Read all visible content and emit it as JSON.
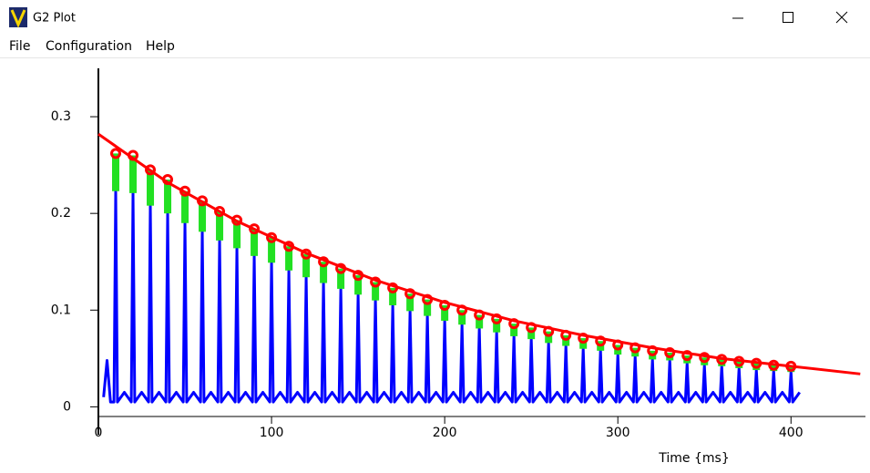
{
  "window": {
    "title": "G2 Plot",
    "menu": [
      "File",
      "Configuration",
      "Help"
    ]
  },
  "chart_data": {
    "type": "line",
    "xlabel": "Time {ms}",
    "xlim": [
      0,
      443
    ],
    "ylim": [
      -0.01,
      0.35
    ],
    "xticks": [
      0,
      100,
      200,
      300,
      400
    ],
    "yticks": [
      0,
      0.1,
      0.2,
      0.3
    ],
    "series": [
      {
        "style": "line",
        "color": "#0000ff",
        "x": [
          3,
          5,
          7,
          9,
          10,
          11,
          15,
          19,
          20,
          21,
          25,
          29,
          30,
          31,
          35,
          39,
          40,
          41,
          45,
          49,
          50,
          51,
          55,
          59,
          60,
          61,
          65,
          69,
          70,
          71,
          75,
          79,
          80,
          81,
          85,
          89,
          90,
          91,
          95,
          99,
          100,
          101,
          105,
          109,
          110,
          111,
          115,
          119,
          120,
          121,
          125,
          129,
          130,
          131,
          135,
          139,
          140,
          141,
          145,
          149,
          150,
          151,
          155,
          159,
          160,
          161,
          165,
          169,
          170,
          171,
          175,
          179,
          180,
          181,
          185,
          189,
          190,
          191,
          195,
          199,
          200,
          201,
          205,
          209,
          210,
          211,
          215,
          219,
          220,
          221,
          225,
          229,
          230,
          231,
          235,
          239,
          240,
          241,
          245,
          249,
          250,
          251,
          255,
          259,
          260,
          261,
          265,
          269,
          270,
          271,
          275,
          279,
          280,
          281,
          285,
          289,
          290,
          291,
          295,
          299,
          300,
          301,
          305,
          309,
          310,
          311,
          315,
          319,
          320,
          321,
          325,
          329,
          330,
          331,
          335,
          339,
          340,
          341,
          345,
          349,
          350,
          351,
          355,
          359,
          360,
          361,
          365,
          369,
          370,
          371,
          375,
          379,
          380,
          381,
          385,
          389,
          390,
          391,
          395,
          399,
          400,
          401,
          405
        ],
        "values": [
          0.01,
          0.048,
          0.005,
          0.005,
          0.223,
          0.005,
          0.015,
          0.005,
          0.221,
          0.005,
          0.015,
          0.005,
          0.208,
          0.005,
          0.015,
          0.005,
          0.2,
          0.005,
          0.015,
          0.005,
          0.19,
          0.005,
          0.015,
          0.005,
          0.181,
          0.005,
          0.015,
          0.005,
          0.172,
          0.005,
          0.015,
          0.005,
          0.164,
          0.005,
          0.015,
          0.005,
          0.156,
          0.005,
          0.015,
          0.005,
          0.149,
          0.005,
          0.015,
          0.005,
          0.141,
          0.005,
          0.015,
          0.005,
          0.134,
          0.005,
          0.015,
          0.005,
          0.128,
          0.005,
          0.015,
          0.005,
          0.122,
          0.005,
          0.015,
          0.005,
          0.116,
          0.005,
          0.015,
          0.005,
          0.11,
          0.005,
          0.015,
          0.005,
          0.105,
          0.005,
          0.015,
          0.005,
          0.099,
          0.005,
          0.015,
          0.005,
          0.094,
          0.005,
          0.015,
          0.005,
          0.089,
          0.005,
          0.015,
          0.005,
          0.085,
          0.005,
          0.015,
          0.005,
          0.081,
          0.005,
          0.015,
          0.005,
          0.077,
          0.005,
          0.015,
          0.005,
          0.073,
          0.005,
          0.015,
          0.005,
          0.07,
          0.005,
          0.015,
          0.005,
          0.066,
          0.005,
          0.015,
          0.005,
          0.063,
          0.005,
          0.015,
          0.005,
          0.06,
          0.005,
          0.015,
          0.005,
          0.058,
          0.005,
          0.015,
          0.005,
          0.054,
          0.005,
          0.015,
          0.005,
          0.052,
          0.005,
          0.015,
          0.005,
          0.049,
          0.005,
          0.015,
          0.005,
          0.048,
          0.005,
          0.015,
          0.005,
          0.045,
          0.005,
          0.015,
          0.005,
          0.043,
          0.005,
          0.015,
          0.005,
          0.042,
          0.005,
          0.015,
          0.005,
          0.04,
          0.005,
          0.015,
          0.005,
          0.038,
          0.005,
          0.015,
          0.005,
          0.037,
          0.005,
          0.015,
          0.005,
          0.036,
          0.005,
          0.015
        ]
      },
      {
        "style": "range",
        "color": "#22e022",
        "x": [
          10,
          20,
          30,
          40,
          50,
          60,
          70,
          80,
          90,
          100,
          110,
          120,
          130,
          140,
          150,
          160,
          170,
          180,
          190,
          200,
          210,
          220,
          230,
          240,
          250,
          260,
          270,
          280,
          290,
          300,
          310,
          320,
          330,
          340,
          350,
          360,
          370,
          380,
          390,
          400
        ],
        "values": [
          0.223,
          0.221,
          0.208,
          0.2,
          0.19,
          0.181,
          0.172,
          0.164,
          0.156,
          0.149,
          0.141,
          0.134,
          0.128,
          0.122,
          0.116,
          0.11,
          0.105,
          0.099,
          0.094,
          0.089,
          0.085,
          0.081,
          0.077,
          0.073,
          0.07,
          0.066,
          0.063,
          0.06,
          0.058,
          0.054,
          0.052,
          0.049,
          0.048,
          0.045,
          0.043,
          0.042,
          0.04,
          0.038,
          0.037,
          0.036
        ]
      },
      {
        "style": "marker",
        "color": "#ff0000",
        "x": [
          10,
          20,
          30,
          40,
          50,
          60,
          70,
          80,
          90,
          100,
          110,
          120,
          130,
          140,
          150,
          160,
          170,
          180,
          190,
          200,
          210,
          220,
          230,
          240,
          250,
          260,
          270,
          280,
          290,
          300,
          310,
          320,
          330,
          340,
          350,
          360,
          370,
          380,
          390,
          400
        ],
        "values": [
          0.262,
          0.26,
          0.245,
          0.235,
          0.223,
          0.213,
          0.202,
          0.193,
          0.184,
          0.175,
          0.166,
          0.158,
          0.15,
          0.143,
          0.136,
          0.129,
          0.123,
          0.117,
          0.111,
          0.105,
          0.1,
          0.095,
          0.091,
          0.086,
          0.082,
          0.078,
          0.074,
          0.071,
          0.068,
          0.064,
          0.061,
          0.058,
          0.056,
          0.053,
          0.051,
          0.049,
          0.047,
          0.045,
          0.043,
          0.042
        ]
      },
      {
        "style": "line",
        "color": "#ff0000",
        "x": [
          0,
          40,
          80,
          120,
          160,
          200,
          240,
          280,
          320,
          360,
          400,
          440
        ],
        "values": [
          0.282,
          0.232,
          0.192,
          0.159,
          0.131,
          0.108,
          0.089,
          0.074,
          0.061,
          0.05,
          0.042,
          0.034
        ]
      }
    ]
  }
}
